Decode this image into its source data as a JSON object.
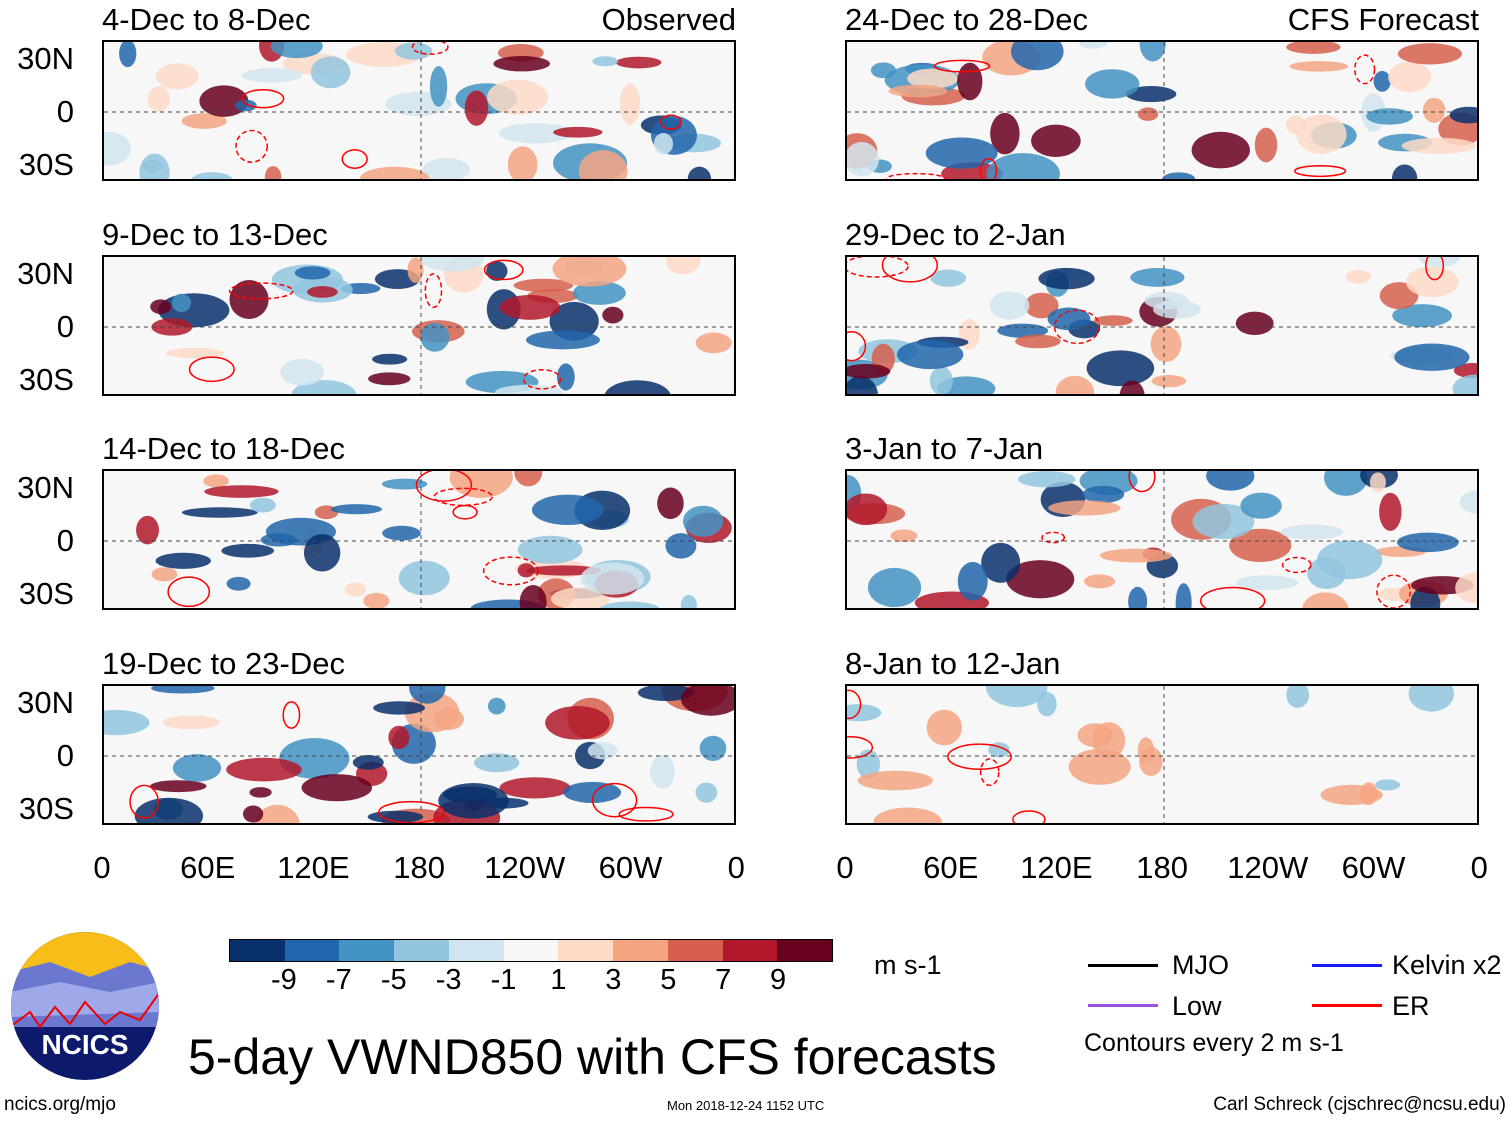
{
  "chart_data": {
    "type": "heatmap",
    "title": "5-day VWND850 with CFS forecasts",
    "variable": "VWND850",
    "units": "m s-1",
    "left_column_label": "Observed",
    "right_column_label": "CFS Forecast",
    "panels_left": [
      "4-Dec to 8-Dec",
      "9-Dec to 13-Dec",
      "14-Dec to 18-Dec",
      "19-Dec to 23-Dec"
    ],
    "panels_right": [
      "24-Dec to 28-Dec",
      "29-Dec to 2-Jan",
      "3-Jan to 7-Jan",
      "8-Jan to 12-Jan"
    ],
    "y_ticks": [
      "30N",
      "0",
      "30S"
    ],
    "x_ticks": [
      "0",
      "60E",
      "120E",
      "180",
      "120W",
      "60W",
      "0"
    ],
    "colorbar": {
      "ticks": [
        "-9",
        "-7",
        "-5",
        "-3",
        "-1",
        "1",
        "3",
        "5",
        "7",
        "9"
      ],
      "colors": [
        "#08306b",
        "#2166ac",
        "#4393c3",
        "#92c5de",
        "#d1e5f0",
        "#f7f7f7",
        "#fddbc7",
        "#f4a582",
        "#d6604d",
        "#b2182b",
        "#67001f"
      ]
    },
    "legend": [
      {
        "label": "MJO",
        "color": "#000000"
      },
      {
        "label": "Kelvin x2",
        "color": "#1a1aff"
      },
      {
        "label": "Low",
        "color": "#a050e0"
      },
      {
        "label": "ER",
        "color": "#ff0000"
      }
    ],
    "contour_note": "Contours every 2 m s-1"
  },
  "footer": {
    "left": "ncics.org/mjo",
    "center": "Mon 2018-12-24 1152 UTC",
    "right": "Carl Schreck (cjschrec@ncsu.edu)",
    "logo_text": "NCICS"
  }
}
